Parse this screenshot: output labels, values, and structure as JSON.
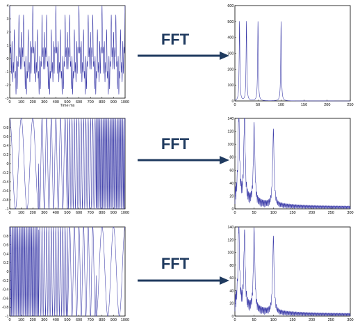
{
  "arrow_label": "FFT",
  "colors": {
    "signal": "#3a3aa8",
    "arrow": "#1f3a5f",
    "axis": "#000000"
  },
  "rows": [
    {
      "signal": {
        "xlabel": "Time  ms",
        "xticks": [
          "0",
          "100",
          "200",
          "300",
          "400",
          "500",
          "600",
          "700",
          "800",
          "900",
          "1000"
        ],
        "yticks": [
          "4",
          "3",
          "2",
          "1",
          "0",
          "-1",
          "-2",
          "-3"
        ],
        "xlim": [
          0,
          1000
        ],
        "ylim": [
          -3,
          4
        ],
        "type": "sum",
        "components_hz": [
          10,
          25,
          50,
          100
        ]
      },
      "spectrum": {
        "xticks": [
          "0",
          "50",
          "100",
          "150",
          "200",
          "250"
        ],
        "yticks": [
          "600",
          "500",
          "400",
          "300",
          "200",
          "100",
          "0"
        ],
        "xlim": [
          0,
          250
        ],
        "ylim": [
          0,
          600
        ],
        "peaks": [
          {
            "x": 10,
            "y": 500
          },
          {
            "x": 25,
            "y": 500
          },
          {
            "x": 50,
            "y": 500
          },
          {
            "x": 100,
            "y": 500
          }
        ],
        "ripple": false
      }
    },
    {
      "signal": {
        "xticks": [
          "0",
          "100",
          "200",
          "300",
          "400",
          "500",
          "600",
          "700",
          "800",
          "900",
          "1000"
        ],
        "yticks": [
          "0.8",
          "0.6",
          "0.4",
          "0.2",
          "0",
          "-0.2",
          "-0.4",
          "-0.6",
          "-0.8",
          "-1"
        ],
        "xlim": [
          0,
          1000
        ],
        "ylim": [
          -1,
          1
        ],
        "type": "piecewise",
        "segments_hz": [
          10,
          25,
          50,
          100
        ]
      },
      "spectrum": {
        "xticks": [
          "0",
          "50",
          "100",
          "150",
          "200",
          "250",
          "300"
        ],
        "yticks": [
          "140",
          "120",
          "100",
          "80",
          "60",
          "40",
          "20",
          "0"
        ],
        "xlim": [
          0,
          300
        ],
        "ylim": [
          0,
          140
        ],
        "peaks": [
          {
            "x": 10,
            "y": 135
          },
          {
            "x": 25,
            "y": 130
          },
          {
            "x": 50,
            "y": 120
          },
          {
            "x": 100,
            "y": 115
          }
        ],
        "ripple": true
      }
    },
    {
      "signal": {
        "xticks": [
          "0",
          "100",
          "200",
          "300",
          "400",
          "500",
          "600",
          "700",
          "800",
          "900",
          "1000"
        ],
        "yticks": [
          "0.8",
          "0.6",
          "0.4",
          "0.2",
          "0",
          "-0.2",
          "-0.4",
          "-0.6",
          "-0.8",
          "-1"
        ],
        "xlim": [
          0,
          1000
        ],
        "ylim": [
          -1,
          1
        ],
        "type": "piecewise",
        "segments_hz": [
          100,
          50,
          25,
          10
        ]
      },
      "spectrum": {
        "xticks": [
          "0",
          "50",
          "100",
          "150",
          "200",
          "250",
          "300"
        ],
        "yticks": [
          "140",
          "120",
          "100",
          "80",
          "60",
          "40",
          "20",
          "0"
        ],
        "xlim": [
          0,
          300
        ],
        "ylim": [
          0,
          140
        ],
        "peaks": [
          {
            "x": 10,
            "y": 130
          },
          {
            "x": 25,
            "y": 115
          },
          {
            "x": 50,
            "y": 125
          },
          {
            "x": 100,
            "y": 117
          }
        ],
        "ripple": true
      }
    }
  ]
}
